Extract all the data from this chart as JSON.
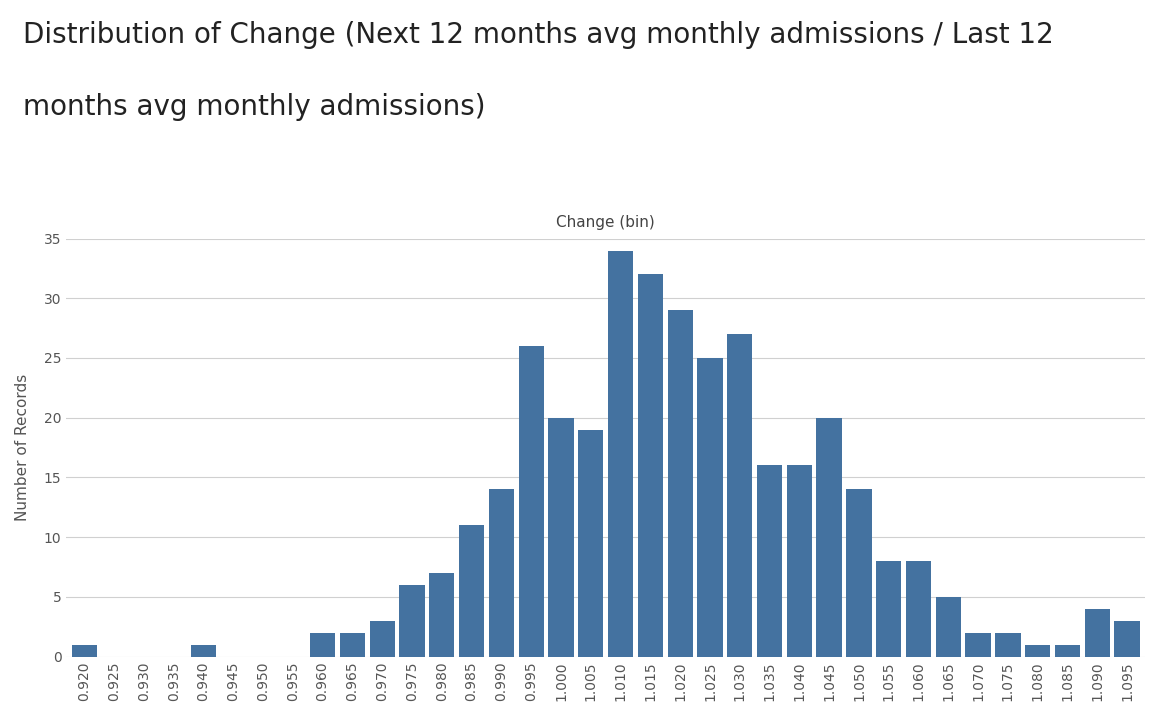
{
  "title_line1": "Distribution of Change (Next 12 months avg monthly admissions / Last 12",
  "title_line2": "months avg monthly admissions)",
  "xlabel_above": "Change (bin)",
  "ylabel": "Number of Records",
  "bar_color": "#4472a0",
  "background_color": "#ffffff",
  "grid_color": "#d0d0d0",
  "categories": [
    "0.920",
    "0.925",
    "0.930",
    "0.935",
    "0.940",
    "0.945",
    "0.950",
    "0.955",
    "0.960",
    "0.965",
    "0.970",
    "0.975",
    "0.980",
    "0.985",
    "0.990",
    "0.995",
    "1.000",
    "1.005",
    "1.010",
    "1.015",
    "1.020",
    "1.025",
    "1.030",
    "1.035",
    "1.040",
    "1.045",
    "1.050",
    "1.055",
    "1.060",
    "1.065",
    "1.070",
    "1.075",
    "1.080",
    "1.085",
    "1.090",
    "1.095"
  ],
  "values": [
    1,
    0,
    0,
    0,
    1,
    0,
    0,
    0,
    2,
    2,
    3,
    6,
    7,
    11,
    14,
    26,
    20,
    19,
    34,
    32,
    29,
    25,
    27,
    16,
    16,
    20,
    14,
    8,
    8,
    5,
    2,
    2,
    1,
    1,
    4,
    3
  ],
  "ylim": [
    0,
    35
  ],
  "yticks": [
    0,
    5,
    10,
    15,
    20,
    25,
    30,
    35
  ],
  "title_fontsize": 20,
  "axis_label_fontsize": 11,
  "tick_fontsize": 10
}
